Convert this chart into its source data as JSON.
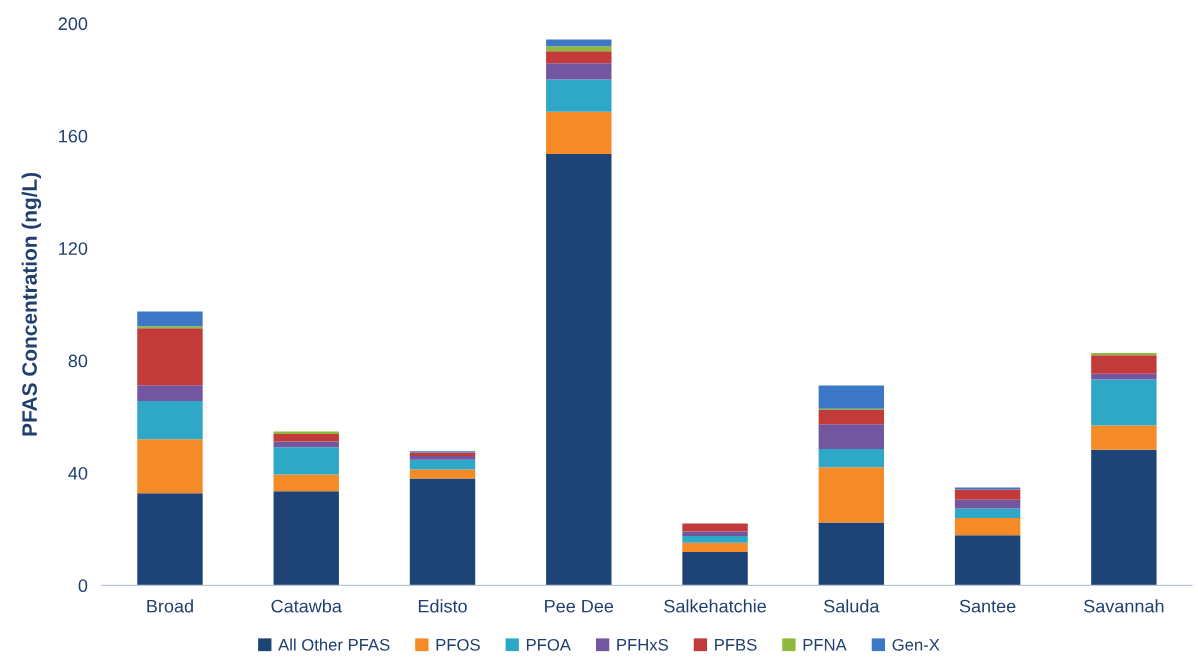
{
  "chart_data": {
    "type": "bar",
    "stacked": true,
    "ylabel": "PFAS Concentration (ng/L)",
    "categories": [
      "Broad",
      "Catawba",
      "Edisto",
      "Pee Dee",
      "Salkehatchie",
      "Saluda",
      "Santee",
      "Savannah"
    ],
    "series": [
      {
        "name": "All Other PFAS",
        "color": "#1e4477",
        "values": [
          32.8,
          33.5,
          38.0,
          153.5,
          11.9,
          22.4,
          17.8,
          48.3
        ]
      },
      {
        "name": "PFOS",
        "color": "#f58b27",
        "values": [
          19.2,
          6.0,
          3.2,
          15.1,
          3.3,
          19.6,
          6.2,
          8.6
        ]
      },
      {
        "name": "PFOA",
        "color": "#2fa8c8",
        "values": [
          13.6,
          9.7,
          3.5,
          11.4,
          2.4,
          6.5,
          3.4,
          16.4
        ]
      },
      {
        "name": "PFHxS",
        "color": "#7356a0",
        "values": [
          5.6,
          2.0,
          1.3,
          5.8,
          1.6,
          8.8,
          3.1,
          2.0
        ]
      },
      {
        "name": "PFBS",
        "color": "#c23a3a",
        "values": [
          20.3,
          2.7,
          1.3,
          4.3,
          2.8,
          5.1,
          3.6,
          6.6
        ]
      },
      {
        "name": "PFNA",
        "color": "#8fb83f",
        "values": [
          0.7,
          0.9,
          null,
          1.8,
          0,
          0.5,
          0,
          0.8
        ]
      },
      {
        "name": "Gen-X",
        "color": "#3c78c6",
        "values": [
          5.3,
          0,
          0.4,
          2.4,
          0,
          8.2,
          0.7,
          0
        ]
      }
    ],
    "ylim": [
      0,
      200
    ],
    "yticks": [
      0,
      40,
      80,
      120,
      160,
      200
    ],
    "grid": false,
    "legend": "bottom"
  }
}
